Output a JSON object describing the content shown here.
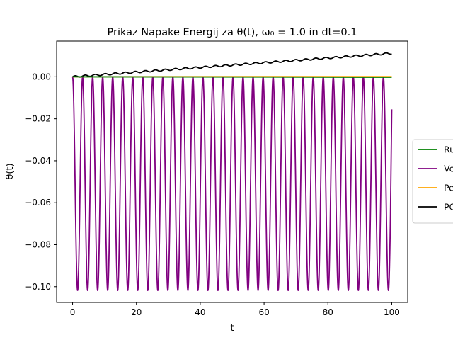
{
  "chart_data": {
    "type": "line",
    "title": "Prikaz Napake Energij za θ(t), ω₀ = 1.0 in dt=0.1",
    "xlabel": "t",
    "ylabel": "θ(t)",
    "xlim": [
      -5,
      105
    ],
    "ylim": [
      -0.1075,
      0.017
    ],
    "x_ticks": [
      0,
      20,
      40,
      60,
      80,
      100
    ],
    "y_ticks": [
      0.0,
      -0.02,
      -0.04,
      -0.06,
      -0.08,
      -0.1
    ],
    "x_tick_labels": [
      "0",
      "20",
      "40",
      "60",
      "80",
      "100"
    ],
    "y_tick_labels": [
      "0.00",
      "−0.02",
      "−0.04",
      "−0.06",
      "−0.08",
      "−0.10"
    ],
    "grid": false,
    "legend_position": "right, partly outside the axes",
    "series": [
      {
        "name": "Ru",
        "color": "#008000",
        "points": [
          [
            0,
            0.0
          ],
          [
            100,
            -0.0002
          ]
        ]
      },
      {
        "name": "Ve",
        "color": "#800080",
        "function": "oscillation between 0 and min, period in t",
        "t_range": [
          0,
          100
        ],
        "period": 3.14159,
        "min": -0.1018,
        "max": 0.0,
        "end_value": -0.0155
      },
      {
        "name": "Pe",
        "color": "#ffa500",
        "points": [
          [
            0,
            0.0
          ],
          [
            100,
            0.0001
          ]
        ]
      },
      {
        "name": "PO",
        "color": "#000000",
        "function": "slow linear drift with small ripples",
        "t_range": [
          0,
          100
        ],
        "start": 0.0,
        "end": 0.0112,
        "ripple_amplitude": 0.0004
      }
    ]
  }
}
